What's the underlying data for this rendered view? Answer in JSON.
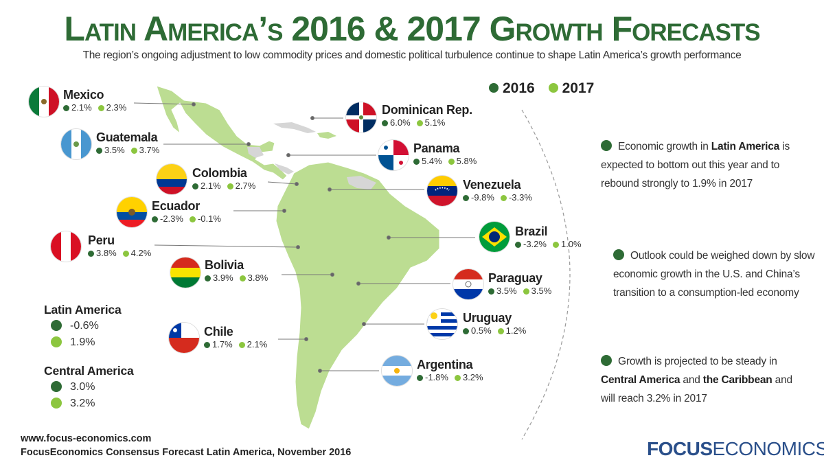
{
  "header": {
    "title": "Latin America’s 2016 & 2017 Growth Forecasts",
    "subtitle": "The region’s ongoing adjustment to low commodity prices and domestic political turbulence continue to shape Latin America’s growth performance"
  },
  "legend": {
    "label_2016": "2016",
    "label_2017": "2017",
    "color_2016": "#2e6b35",
    "color_2017": "#8cc63f"
  },
  "countries": {
    "mexico": {
      "name": "Mexico",
      "v2016": "2.1%",
      "v2017": "2.3%",
      "flag_icon": "mexico-flag"
    },
    "guatemala": {
      "name": "Guatemala",
      "v2016": "3.5%",
      "v2017": "3.7%",
      "flag_icon": "guatemala-flag"
    },
    "colombia": {
      "name": "Colombia",
      "v2016": "2.1%",
      "v2017": "2.7%",
      "flag_icon": "colombia-flag"
    },
    "ecuador": {
      "name": "Ecuador",
      "v2016": "-2.3%",
      "v2017": "-0.1%",
      "flag_icon": "ecuador-flag"
    },
    "peru": {
      "name": "Peru",
      "v2016": "3.8%",
      "v2017": "4.2%",
      "flag_icon": "peru-flag"
    },
    "bolivia": {
      "name": "Bolivia",
      "v2016": "3.9%",
      "v2017": "3.8%",
      "flag_icon": "bolivia-flag"
    },
    "chile": {
      "name": "Chile",
      "v2016": "1.7%",
      "v2017": "2.1%",
      "flag_icon": "chile-flag"
    },
    "dominican": {
      "name": "Dominican Rep.",
      "v2016": "6.0%",
      "v2017": "5.1%",
      "flag_icon": "dominican-republic-flag"
    },
    "panama": {
      "name": "Panama",
      "v2016": "5.4%",
      "v2017": "5.8%",
      "flag_icon": "panama-flag"
    },
    "venezuela": {
      "name": "Venezuela",
      "v2016": "-9.8%",
      "v2017": "-3.3%",
      "flag_icon": "venezuela-flag"
    },
    "brazil": {
      "name": "Brazil",
      "v2016": "-3.2%",
      "v2017": "1.0%",
      "flag_icon": "brazil-flag"
    },
    "paraguay": {
      "name": "Paraguay",
      "v2016": "3.5%",
      "v2017": "3.5%",
      "flag_icon": "paraguay-flag"
    },
    "uruguay": {
      "name": "Uruguay",
      "v2016": "0.5%",
      "v2017": "1.2%",
      "flag_icon": "uruguay-flag"
    },
    "argentina": {
      "name": "Argentina",
      "v2016": "-1.8%",
      "v2017": "3.2%",
      "flag_icon": "argentina-flag"
    }
  },
  "regions": {
    "latam": {
      "name": "Latin America",
      "v2016": "-0.6%",
      "v2017": "1.9%"
    },
    "central": {
      "name": "Central America",
      "v2016": "3.0%",
      "v2017": "3.2%"
    }
  },
  "notes": {
    "n1": {
      "a": "Economic growth in ",
      "b": "Latin America",
      "c": " is expected to bottom out this year and to rebound strongly to 1.9% in 2017"
    },
    "n2": {
      "a": "Outlook could be weighed down by slow economic growth in the U.S. and China’s transition to a consumption-led economy"
    },
    "n3": {
      "a": "Growth is projected to be steady in ",
      "b": "Central America",
      "c": " and ",
      "d": "the Caribbean",
      "e": " and will reach 3.2% in 2017"
    }
  },
  "footer": {
    "url": "www.focus-economics.com",
    "source": "FocusEconomics Consensus Forecast Latin America, November 2016",
    "brand_bold": "FOCUS",
    "brand_light": "ECONOMICS"
  }
}
